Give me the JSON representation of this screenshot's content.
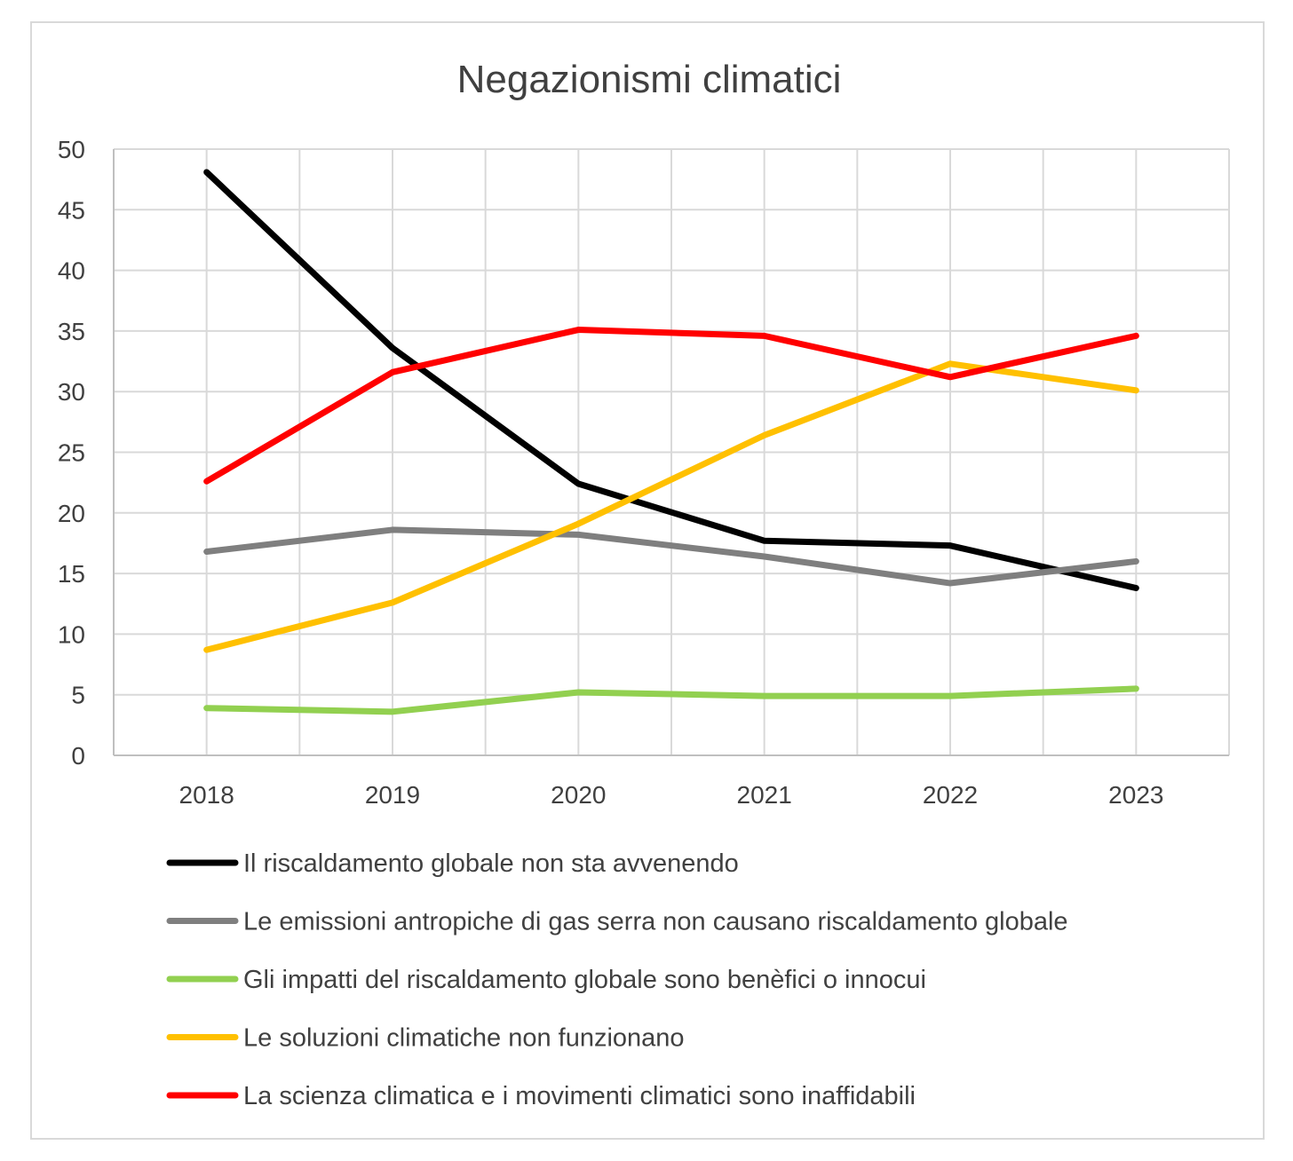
{
  "chart_data": {
    "type": "line",
    "title": "Negazionismi climatici",
    "xlabel": "",
    "ylabel": "",
    "ylim": [
      0,
      50
    ],
    "yticks": [
      0,
      5,
      10,
      15,
      20,
      25,
      30,
      35,
      40,
      45,
      50
    ],
    "categories": [
      "2018",
      "2019",
      "2020",
      "2021",
      "2022",
      "2023"
    ],
    "grid": true,
    "legend_position": "bottom",
    "series": [
      {
        "name": "Il riscaldamento globale non sta avvenendo",
        "color": "#000000",
        "values": [
          48.1,
          33.6,
          22.4,
          17.7,
          17.3,
          13.8
        ]
      },
      {
        "name": "Le emissioni antropiche di gas serra non causano riscaldamento globale",
        "color": "#7f7f7f",
        "values": [
          16.8,
          18.6,
          18.2,
          16.4,
          14.2,
          16.0
        ]
      },
      {
        "name": "Gli impatti del riscaldamento globale sono benèfici o innocui",
        "color": "#92d050",
        "values": [
          3.9,
          3.6,
          5.2,
          4.9,
          4.9,
          5.5
        ]
      },
      {
        "name": "Le soluzioni climatiche non funzionano",
        "color": "#ffc000",
        "values": [
          8.7,
          12.6,
          19.1,
          26.4,
          32.3,
          30.1
        ]
      },
      {
        "name": "La scienza climatica e i movimenti climatici sono inaffidabili",
        "color": "#ff0000",
        "values": [
          22.6,
          31.6,
          35.1,
          34.6,
          31.2,
          34.6
        ]
      }
    ]
  }
}
